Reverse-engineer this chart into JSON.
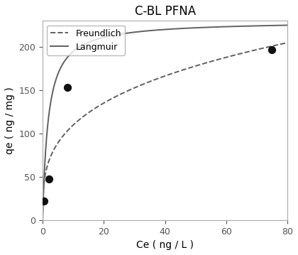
{
  "title": "C-BL PFNA",
  "xlabel": "Ce ( ng / L )",
  "ylabel": "qe ( ng / mg )",
  "xlim": [
    0,
    80
  ],
  "ylim": [
    0,
    230
  ],
  "xticks": [
    0,
    20,
    40,
    60,
    80
  ],
  "yticks": [
    0,
    50,
    100,
    150,
    200
  ],
  "data_points_x": [
    0.5,
    2.0,
    8.0,
    75.0
  ],
  "data_points_y": [
    22,
    47,
    153,
    197
  ],
  "langmuir_params": {
    "qmax": 230.0,
    "KL": 0.55
  },
  "freundlich_params": {
    "KF": 55.0,
    "n": 0.3
  },
  "line_color": "#606060",
  "dot_color": "#111111",
  "dot_size": 50,
  "freundlich_label": "Freundlich",
  "langmuir_label": "Langmuir",
  "title_fontsize": 12,
  "axis_label_fontsize": 10,
  "tick_fontsize": 9,
  "legend_fontsize": 9,
  "background_color": "#ffffff",
  "figsize": [
    4.2,
    3.59
  ],
  "dpi": 100
}
